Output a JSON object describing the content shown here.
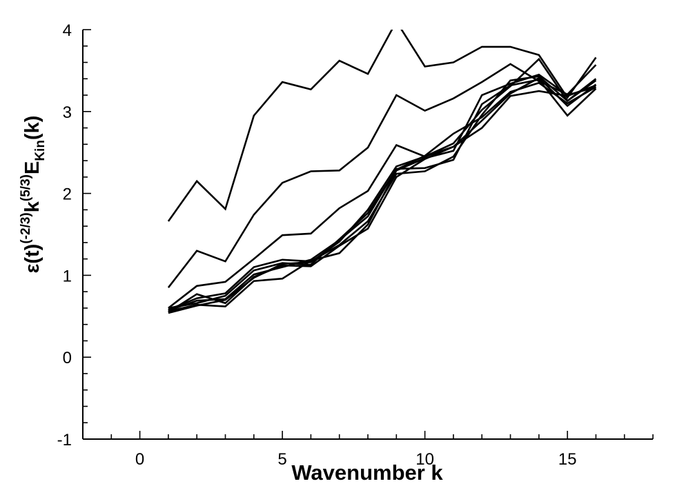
{
  "chart_data": {
    "type": "line",
    "xlabel": "Wavenumber k",
    "ylabel": {
      "base1": "ε(t)",
      "sup1": "(-2/3)",
      "base2": "k",
      "sup2": "(5/3)",
      "base3": "E",
      "sub3": "Kin",
      "base4": "(k)"
    },
    "xlim": [
      -2,
      18
    ],
    "ylim": [
      -1,
      4
    ],
    "xticks": [
      0,
      5,
      10,
      15
    ],
    "yticks": [
      -1,
      0,
      1,
      2,
      3,
      4
    ],
    "grid": false,
    "legend": "none",
    "line_color": "#000000",
    "x": [
      1,
      2,
      3,
      4,
      5,
      6,
      7,
      8,
      9,
      10,
      11,
      12,
      13,
      14,
      15,
      16
    ],
    "series": [
      {
        "values": [
          1.66,
          2.15,
          1.81,
          2.95,
          3.36,
          3.27,
          3.62,
          3.46,
          4.1,
          3.55,
          3.6,
          3.79,
          3.79,
          3.69,
          3.17,
          3.66
        ]
      },
      {
        "values": [
          0.85,
          1.3,
          1.17,
          1.74,
          2.13,
          2.27,
          2.28,
          2.56,
          3.2,
          3.01,
          3.16,
          3.36,
          3.58,
          3.37,
          3.21,
          3.57
        ]
      },
      {
        "values": [
          0.6,
          0.87,
          0.92,
          1.2,
          1.49,
          1.51,
          1.82,
          2.03,
          2.59,
          2.45,
          2.61,
          3.02,
          3.31,
          3.64,
          3.13,
          3.4
        ]
      },
      {
        "values": [
          0.58,
          0.72,
          0.78,
          1.1,
          1.19,
          1.17,
          1.37,
          1.66,
          2.24,
          2.27,
          2.45,
          2.96,
          3.38,
          3.43,
          3.13,
          3.38
        ]
      },
      {
        "values": [
          0.56,
          0.64,
          0.62,
          0.93,
          0.96,
          1.18,
          1.27,
          1.62,
          2.28,
          2.43,
          2.52,
          3.2,
          3.34,
          3.45,
          3.2,
          3.3
        ]
      },
      {
        "values": [
          0.55,
          0.77,
          0.66,
          0.98,
          1.12,
          1.11,
          1.36,
          1.57,
          2.2,
          2.42,
          2.57,
          2.8,
          3.19,
          3.25,
          3.19,
          3.32
        ]
      },
      {
        "values": [
          0.6,
          0.66,
          0.75,
          1.06,
          1.15,
          1.13,
          1.44,
          1.76,
          2.29,
          2.46,
          2.73,
          2.93,
          3.24,
          3.35,
          3.1,
          3.3
        ]
      },
      {
        "values": [
          0.57,
          0.69,
          0.71,
          1.01,
          1.1,
          1.19,
          1.43,
          1.72,
          2.3,
          2.31,
          2.41,
          3.09,
          3.32,
          3.39,
          2.95,
          3.28
        ]
      },
      {
        "values": [
          0.54,
          0.63,
          0.7,
          0.97,
          1.14,
          1.16,
          1.41,
          1.8,
          2.33,
          2.45,
          2.57,
          2.89,
          3.22,
          3.41,
          3.07,
          3.33
        ]
      }
    ]
  }
}
